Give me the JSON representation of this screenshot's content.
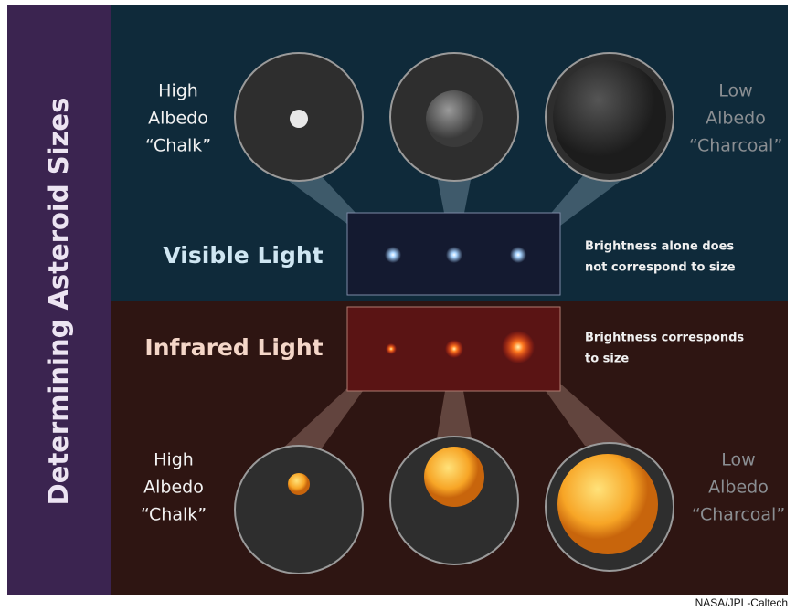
{
  "side_title": "Determining Asteroid Sizes",
  "visible": {
    "title": "Visible Light",
    "note_lines": [
      "Brightness alone does",
      "not correspond to size"
    ],
    "left_label": [
      "High",
      "Albedo",
      "“Chalk”"
    ],
    "right_label": [
      "Low",
      "Albedo",
      "“Charcoal”"
    ]
  },
  "infrared": {
    "title": "Infrared Light",
    "note_lines": [
      "Brightness corresponds",
      "to size"
    ],
    "left_label": [
      "High",
      "Albedo",
      "“Chalk”"
    ],
    "right_label": [
      "Low",
      "Albedo",
      "“Charcoal”"
    ]
  },
  "credit": "NASA/JPL-Caltech"
}
